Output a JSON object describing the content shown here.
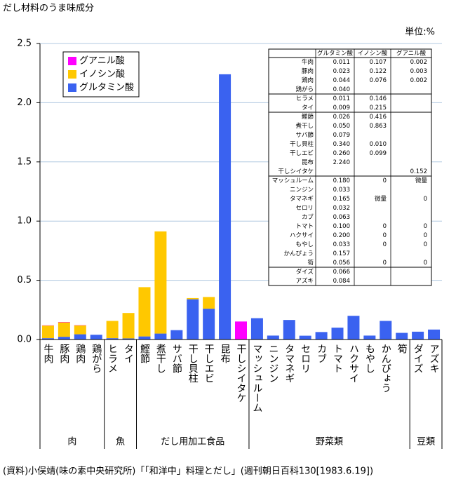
{
  "chart_data": {
    "type": "stacked-bar",
    "title": "だし材料のうま味成分",
    "unit": "単位:%",
    "source": "(資料)小俣靖(味の素中央研究所)「「和洋中」料理とだし」(週刊朝日百科130[1983.6.19])",
    "groups": [
      {
        "label": "肉",
        "categories": [
          "牛肉",
          "豚肉",
          "鶏肉",
          "鶏がら"
        ]
      },
      {
        "label": "魚",
        "categories": [
          "ヒラメ",
          "タイ"
        ]
      },
      {
        "label": "だし用加工食品",
        "categories": [
          "鰹節",
          "煮干し",
          "サバ節",
          "干し貝柱",
          "干しエビ",
          "昆布",
          "干しシイタケ"
        ]
      },
      {
        "label": "野菜類",
        "categories": [
          "マッシュルーム",
          "ニンジン",
          "タマネギ",
          "セロリ",
          "カブ",
          "トマト",
          "ハクサイ",
          "もやし",
          "かんぴょう",
          "筍"
        ]
      },
      {
        "label": "豆類",
        "categories": [
          "ダイズ",
          "アズキ"
        ]
      }
    ],
    "series": [
      {
        "name": "グルタミン酸",
        "color": "#3a62f0",
        "values": [
          0.011,
          0.023,
          0.044,
          0.04,
          0.011,
          0.009,
          0.026,
          0.05,
          0.079,
          0.34,
          0.26,
          2.24,
          null,
          0.18,
          0.033,
          0.165,
          0.032,
          0.063,
          0.1,
          0.2,
          0.033,
          0.157,
          0.056,
          0.066,
          0.084
        ],
        "value_labels": [
          "0.011",
          "0.023",
          "0.044",
          "0.040",
          "0.011",
          "0.009",
          "0.026",
          "0.050",
          "0.079",
          "0.340",
          "0.260",
          "2.240",
          null,
          "0.180",
          "0.033",
          "0.165",
          "0.032",
          "0.063",
          "0.100",
          "0.200",
          "0.033",
          "0.157",
          "0.056",
          "0.066",
          "0.084"
        ]
      },
      {
        "name": "イノシン酸",
        "color": "#ffc800",
        "values": [
          0.107,
          0.122,
          0.076,
          null,
          0.146,
          0.215,
          0.416,
          0.863,
          null,
          0.01,
          0.099,
          null,
          null,
          0,
          null,
          null,
          null,
          null,
          0,
          0,
          0,
          null,
          0,
          null,
          null
        ],
        "value_labels": [
          "0.107",
          "0.122",
          "0.076",
          null,
          "0.146",
          "0.215",
          "0.416",
          "0.863",
          null,
          "0.010",
          "0.099",
          null,
          null,
          "0",
          null,
          "微量",
          null,
          null,
          "0",
          "0",
          "0",
          null,
          "0",
          null,
          null
        ]
      },
      {
        "name": "グアニル酸",
        "color": "#ff00ff",
        "values": [
          0.002,
          0.003,
          0.002,
          null,
          null,
          null,
          null,
          null,
          null,
          null,
          null,
          null,
          0.152,
          null,
          null,
          0,
          null,
          null,
          0,
          0,
          0,
          null,
          0,
          null,
          null
        ],
        "value_labels": [
          "0.002",
          "0.003",
          "0.002",
          null,
          null,
          null,
          null,
          null,
          null,
          null,
          null,
          null,
          "0.152",
          "微量",
          null,
          "0",
          null,
          null,
          "0",
          "0",
          "0",
          null,
          "0",
          null,
          null
        ]
      }
    ],
    "ylim": [
      0,
      2.5
    ],
    "yticks": [
      {
        "value": 0,
        "label": "0.0"
      },
      0.5,
      {
        "value": 1,
        "label": "1.0"
      },
      1.5,
      {
        "value": 2,
        "label": "2.0"
      },
      2.5
    ],
    "grid": true
  }
}
